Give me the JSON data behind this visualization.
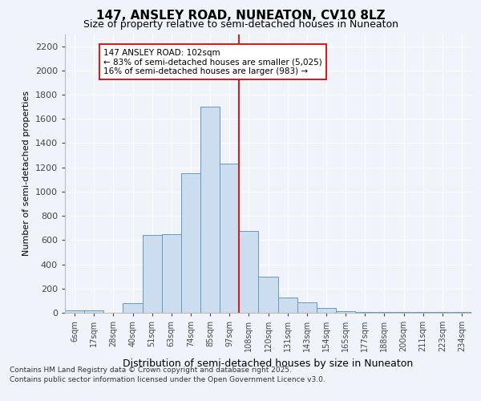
{
  "title1": "147, ANSLEY ROAD, NUNEATON, CV10 8LZ",
  "title2": "Size of property relative to semi-detached houses in Nuneaton",
  "xlabel": "Distribution of semi-detached houses by size in Nuneaton",
  "ylabel": "Number of semi-detached properties",
  "categories": [
    "6sqm",
    "17sqm",
    "28sqm",
    "40sqm",
    "51sqm",
    "63sqm",
    "74sqm",
    "85sqm",
    "97sqm",
    "108sqm",
    "120sqm",
    "131sqm",
    "143sqm",
    "154sqm",
    "165sqm",
    "177sqm",
    "188sqm",
    "200sqm",
    "211sqm",
    "223sqm",
    "234sqm"
  ],
  "values": [
    20,
    20,
    0,
    80,
    645,
    650,
    1150,
    1700,
    1230,
    675,
    295,
    125,
    85,
    40,
    15,
    5,
    5,
    5,
    5,
    5,
    5
  ],
  "bar_color": "#ccddf0",
  "bar_edge_color": "#6699bb",
  "vline_x_idx": 8,
  "vline_color": "#cc2222",
  "annotation_text": "147 ANSLEY ROAD: 102sqm\n← 83% of semi-detached houses are smaller (5,025)\n16% of semi-detached houses are larger (983) →",
  "annotation_box_color": "#ffffff",
  "annotation_box_edge": "#cc2222",
  "ylim": [
    0,
    2300
  ],
  "yticks": [
    0,
    200,
    400,
    600,
    800,
    1000,
    1200,
    1400,
    1600,
    1800,
    2000,
    2200
  ],
  "footnote1": "Contains HM Land Registry data © Crown copyright and database right 2025.",
  "footnote2": "Contains public sector information licensed under the Open Government Licence v3.0.",
  "bg_color": "#f0f4fa",
  "plot_bg_color": "#f0f4fa",
  "grid_color": "#ffffff",
  "title1_fontsize": 11,
  "title2_fontsize": 9
}
